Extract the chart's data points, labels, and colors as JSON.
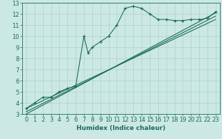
{
  "bg_color": "#cce8e4",
  "grid_color": "#b0d4cf",
  "line_color": "#1a6b5a",
  "xlabel": "Humidex (Indice chaleur)",
  "xlim": [
    -0.5,
    23.5
  ],
  "ylim": [
    3,
    13
  ],
  "xticks": [
    0,
    1,
    2,
    3,
    4,
    5,
    6,
    7,
    8,
    9,
    10,
    11,
    12,
    13,
    14,
    15,
    16,
    17,
    18,
    19,
    20,
    21,
    22,
    23
  ],
  "yticks": [
    3,
    4,
    5,
    6,
    7,
    8,
    9,
    10,
    11,
    12,
    13
  ],
  "jagged_x": [
    0,
    1,
    2,
    3,
    4,
    5,
    6,
    7,
    7.5,
    8,
    9,
    10,
    11,
    12,
    13,
    14,
    15,
    16,
    17,
    18,
    19,
    20,
    21,
    22,
    23
  ],
  "jagged_y": [
    3.5,
    4.0,
    4.5,
    4.5,
    5.0,
    5.3,
    5.5,
    10.0,
    8.5,
    9.0,
    9.5,
    10.0,
    11.0,
    12.5,
    12.7,
    12.5,
    12.0,
    11.5,
    11.5,
    11.4,
    11.4,
    11.5,
    11.5,
    11.6,
    12.2
  ],
  "line1_x": [
    0,
    23
  ],
  "line1_y": [
    3.5,
    11.5
  ],
  "line2_x": [
    0,
    23
  ],
  "line2_y": [
    3.2,
    11.8
  ],
  "line3_x": [
    0,
    23
  ],
  "line3_y": [
    3.0,
    12.1
  ],
  "tick_fontsize": 6,
  "xlabel_fontsize": 6.5
}
